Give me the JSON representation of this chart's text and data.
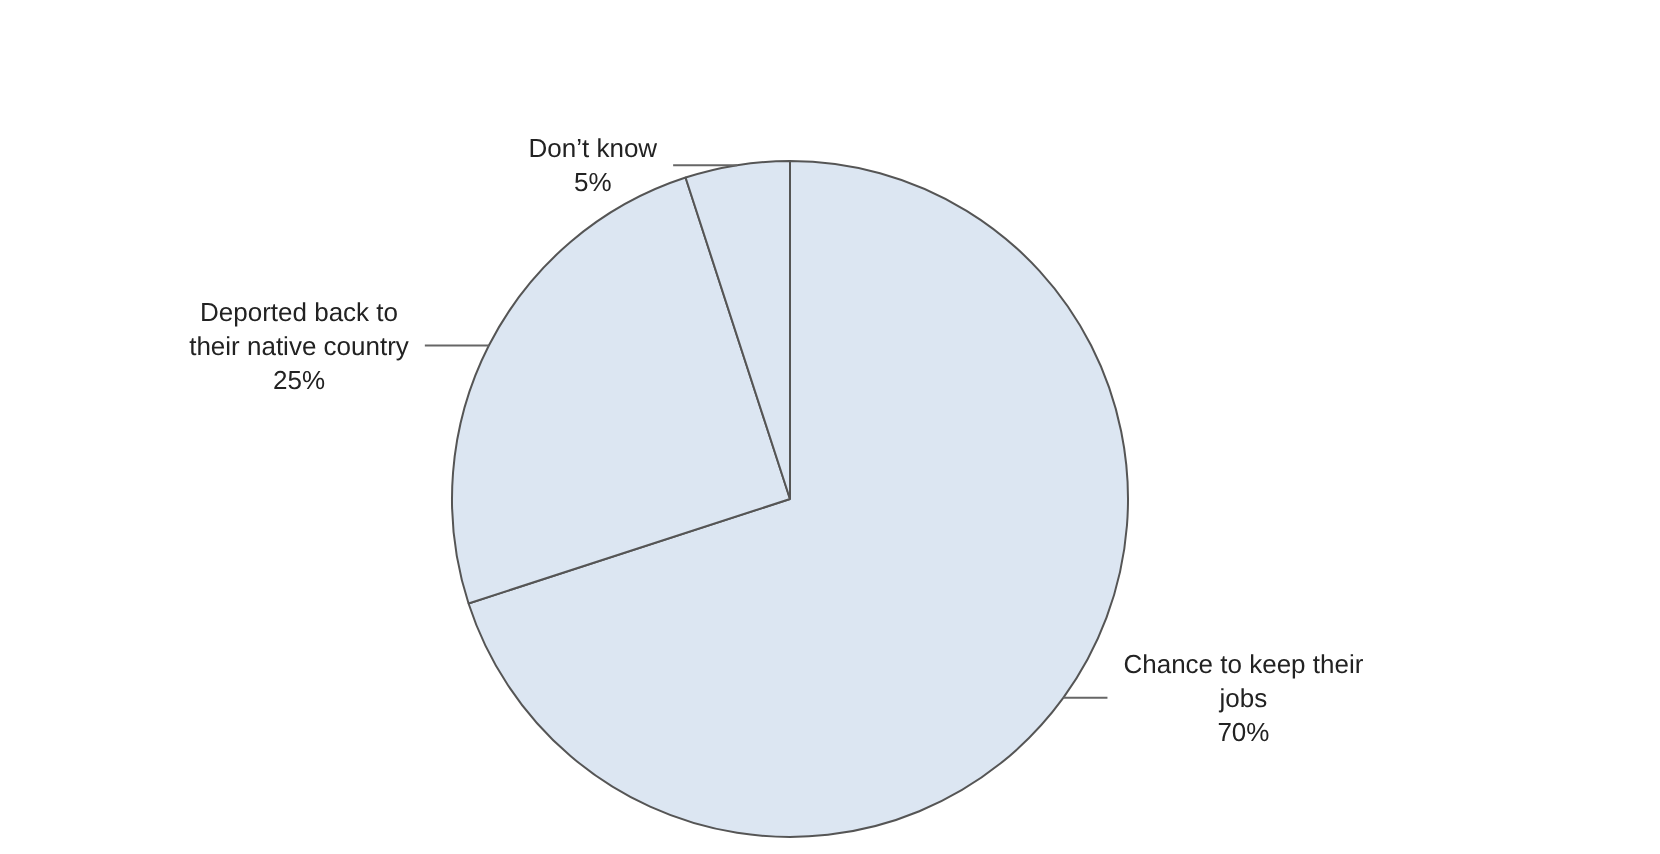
{
  "chart_data": {
    "type": "pie",
    "categories": [
      "Chance to keep their jobs",
      "Deported back to their native country",
      "Don’t know"
    ],
    "values": [
      70,
      25,
      5
    ],
    "value_labels": [
      "70%",
      "25%",
      "5%"
    ],
    "colors": [
      "#dce6f2",
      "#dce6f2",
      "#dce6f2"
    ],
    "legend": false
  }
}
